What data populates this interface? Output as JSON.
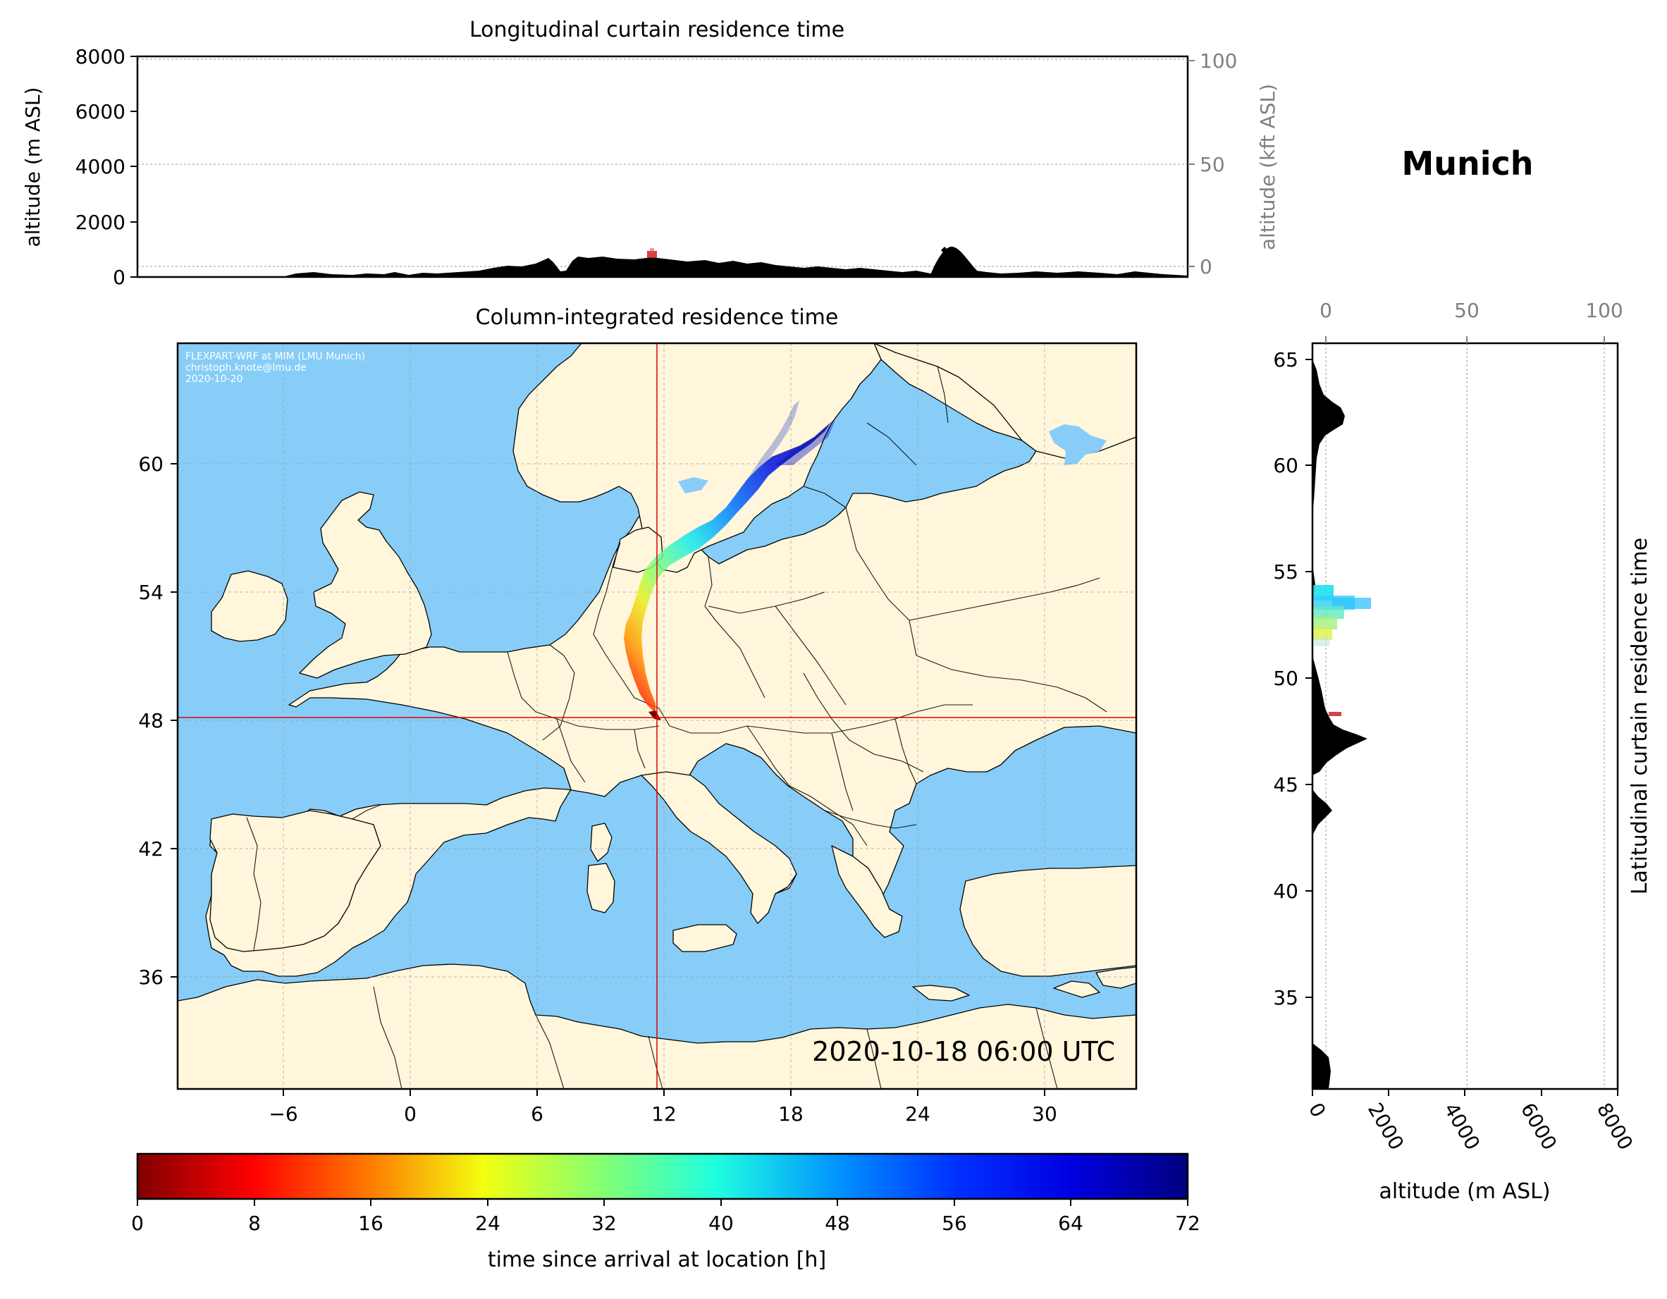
{
  "location_title": "Munich",
  "timestamp": "2020-10-18 06:00 UTC",
  "credits": {
    "line1": "FLEXPART-WRF at MIM (LMU Munich)",
    "line2": "christoph.knote@lmu.de",
    "line3": "2020-10-20"
  },
  "colors": {
    "sea": "#87cdf8",
    "land": "#fff6db",
    "border": "#000000",
    "crosshair": "#e00000",
    "terrain": "#000000",
    "grid": "#9a9a9a",
    "secondary_axis": "#808080"
  },
  "longitudinal_panel": {
    "title": "Longitudinal curtain residence time",
    "ylabel": "altitude (m ASL)",
    "y2label": "altitude (kft ASL)",
    "yticks": [
      "0",
      "2000",
      "4000",
      "6000",
      "8000"
    ],
    "y2ticks": [
      "0",
      "50",
      "100"
    ],
    "ylim": [
      0,
      8000
    ],
    "y2lim": [
      0,
      100
    ]
  },
  "map_panel": {
    "title": "Column-integrated residence time",
    "xticks": [
      "−6",
      "0",
      "6",
      "12",
      "18",
      "24",
      "30"
    ],
    "yticks": [
      "60",
      "54",
      "48",
      "42",
      "36"
    ],
    "lon_range": [
      -11,
      34
    ],
    "lat_range": [
      30,
      65
    ],
    "location": {
      "lon": 11.6,
      "lat": 48.15
    }
  },
  "latitudinal_panel": {
    "title": "Latitudinal curtain residence time",
    "xlabel": "altitude (m ASL)",
    "xticks": [
      "0",
      "2000",
      "4000",
      "6000",
      "8000"
    ],
    "x2ticks": [
      "0",
      "50",
      "100"
    ],
    "yticks": [
      "65",
      "60",
      "55",
      "50",
      "45",
      "40",
      "35"
    ],
    "xlim": [
      0,
      8000
    ],
    "ylim": [
      30.7,
      65.8
    ]
  },
  "colorbar": {
    "label": "time since arrival at location [h]",
    "ticks": [
      "0",
      "8",
      "16",
      "24",
      "32",
      "40",
      "48",
      "56",
      "64",
      "72"
    ],
    "range": [
      0,
      72
    ],
    "colormap": "jet_r"
  }
}
